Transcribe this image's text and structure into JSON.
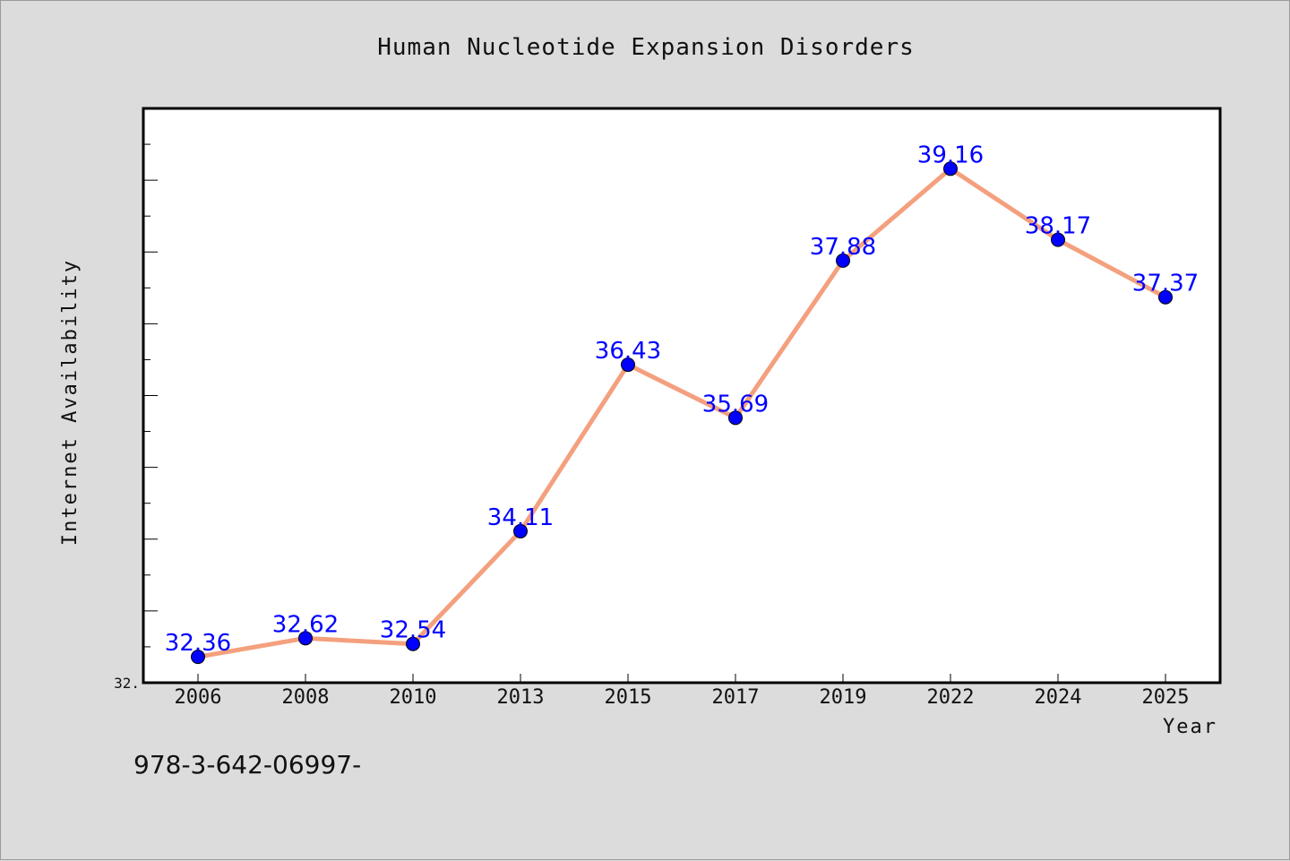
{
  "chart_data": {
    "type": "line",
    "title": "Human Nucleotide Expansion Disorders",
    "xlabel": "Year",
    "ylabel": "Internet Availability",
    "categories": [
      "2006",
      "2008",
      "2010",
      "2013",
      "2015",
      "2017",
      "2019",
      "2022",
      "2024",
      "2025"
    ],
    "series": [
      {
        "values": [
          32.36,
          32.62,
          32.54,
          34.11,
          36.43,
          35.69,
          37.88,
          39.16,
          38.17,
          37.37
        ],
        "line_color": "#f4a07e",
        "marker_color": "#0000ff"
      }
    ],
    "data_labels": [
      "32.36",
      "32.62",
      "32.54",
      "34.11",
      "36.43",
      "35.69",
      "37.88",
      "39.16",
      "38.17",
      "37.37"
    ],
    "ytick_labels": [
      "32."
    ],
    "ylim": [
      32.0,
      40.0
    ],
    "grid": false,
    "legend": "none",
    "background": "#dcdcdc",
    "plot_background": "#ffffff"
  },
  "footer": {
    "text": "978-3-642-06997-"
  }
}
